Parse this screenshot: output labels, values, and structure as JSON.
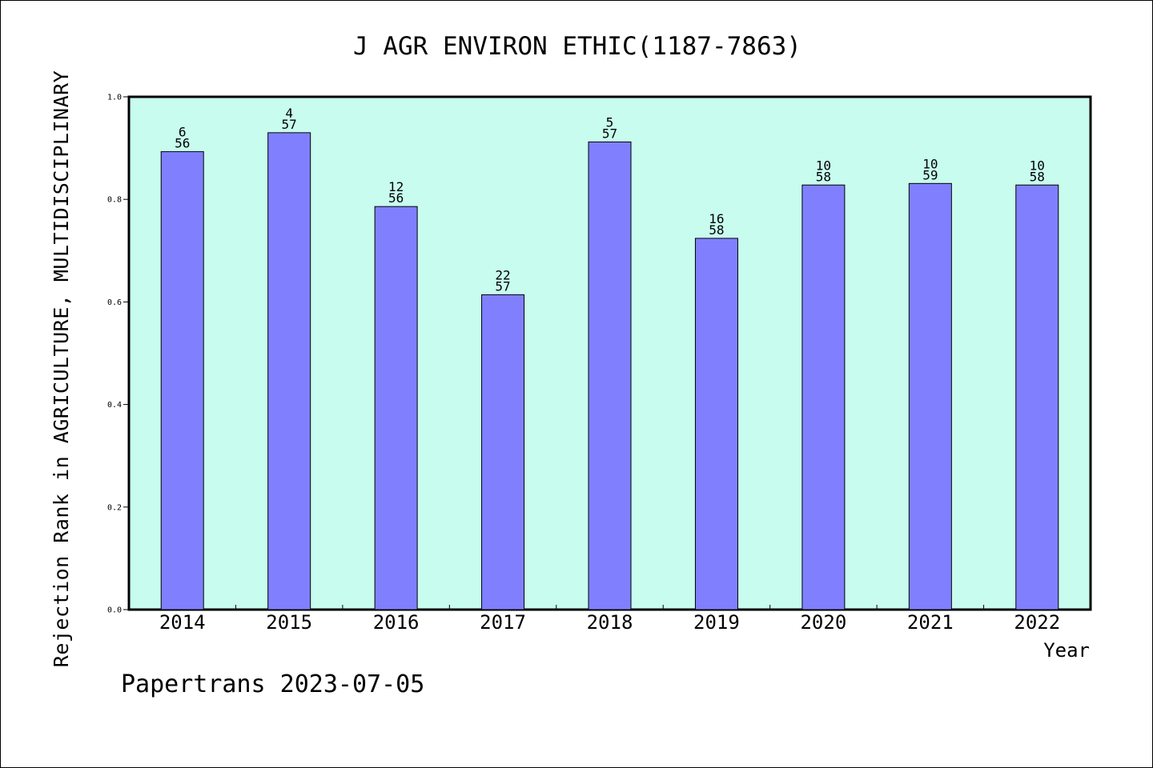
{
  "chart_data": {
    "type": "bar",
    "title": "J AGR ENVIRON ETHIC(1187-7863)",
    "xlabel": "Year",
    "ylabel": "Rejection Rank in AGRICULTURE, MULTIDISCIPLINARY",
    "ylim": [
      0.0,
      1.0
    ],
    "yticks": [
      "0.0",
      "0.2",
      "0.4",
      "0.6",
      "0.8",
      "1.0"
    ],
    "grid": false,
    "categories": [
      "2014",
      "2015",
      "2016",
      "2017",
      "2018",
      "2019",
      "2020",
      "2021",
      "2022"
    ],
    "values": [
      0.893,
      0.93,
      0.786,
      0.614,
      0.912,
      0.724,
      0.828,
      0.831,
      0.828
    ],
    "ranks": [
      "6",
      "4",
      "12",
      "22",
      "5",
      "16",
      "10",
      "10",
      "10"
    ],
    "totals": [
      "56",
      "57",
      "56",
      "57",
      "57",
      "58",
      "58",
      "59",
      "58"
    ]
  },
  "footer": "Papertrans 2023-07-05",
  "colors": {
    "plot_background": "#c8fcee",
    "bar_fill": "#8080ff",
    "bar_stroke": "#000000",
    "axis": "#000000"
  }
}
